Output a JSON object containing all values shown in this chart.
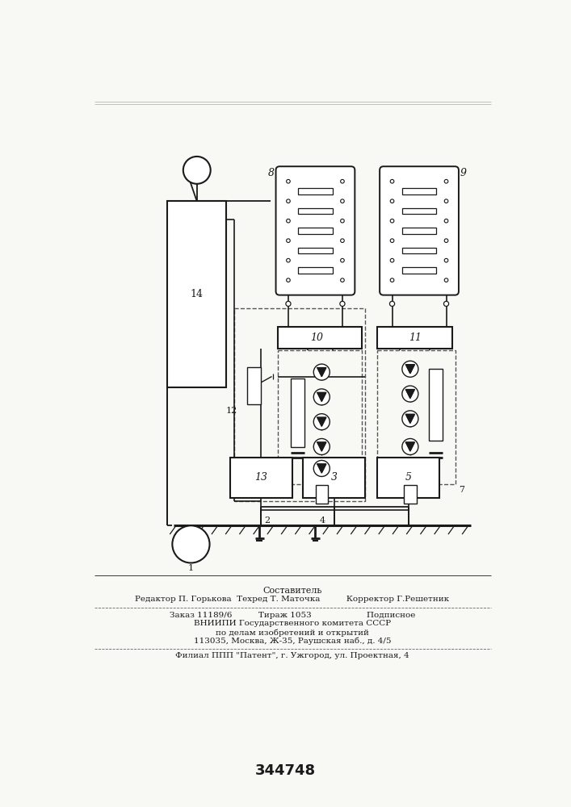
{
  "patent_number": "344748",
  "bg_color": "#f8f8f5",
  "line_color": "#1a1a1a",
  "footer_lines": [
    "Составитель",
    "Редактор П. Горькова  Техред Т. Маточка          Корректор Г.Решетник",
    "Заказ 11189/6          Тираж 1053                     Подписное",
    "ВНИИПИ Государственного комитета СССР",
    "по делам изобретений и открытий",
    "113035, Москва, Ж-35, Раушская наб., д. 4/5",
    "Филиал ППП \"Патент\", г. Ужгород, ул. Проектная, 4"
  ]
}
